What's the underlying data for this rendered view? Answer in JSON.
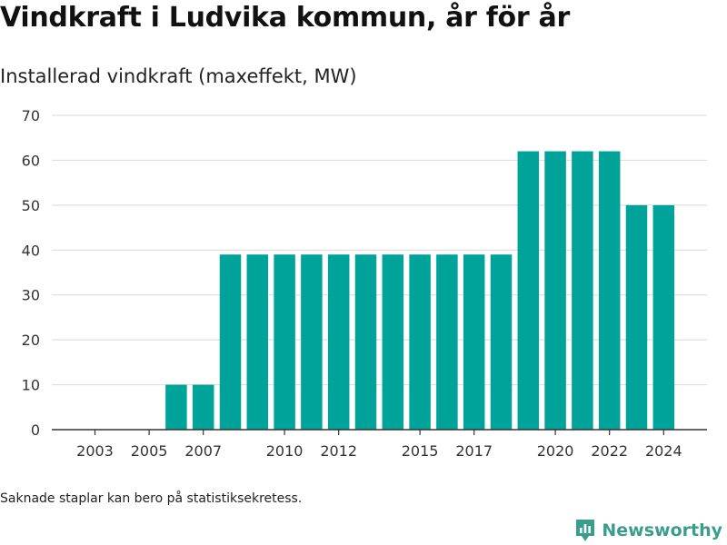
{
  "title": "Vindkraft i Ludvika kommun, år för år",
  "subtitle": "Installerad vindkraft (maxeffekt, MW)",
  "footnote": "Saknade staplar kan bero på statistiksekretess.",
  "brand": {
    "name": "Newsworthy",
    "color": "#3b9e8d",
    "icon": "newsworthy-logo-icon"
  },
  "chart_data": {
    "type": "bar",
    "title": "Vindkraft i Ludvika kommun, år för år",
    "subtitle": "Installerad vindkraft (maxeffekt, MW)",
    "xlabel": "",
    "ylabel": "",
    "ylim": [
      0,
      70
    ],
    "yticks": [
      0,
      10,
      20,
      30,
      40,
      50,
      60,
      70
    ],
    "xticks": [
      2003,
      2005,
      2007,
      2010,
      2012,
      2015,
      2017,
      2020,
      2022,
      2024
    ],
    "categories": [
      2006,
      2007,
      2008,
      2009,
      2010,
      2011,
      2012,
      2013,
      2014,
      2015,
      2016,
      2017,
      2018,
      2019,
      2020,
      2021,
      2022,
      2023,
      2024
    ],
    "values": [
      10,
      10,
      39,
      39,
      39,
      39,
      39,
      39,
      39,
      39,
      39,
      39,
      39,
      62,
      62,
      62,
      62,
      50,
      50
    ],
    "bar_color": "#00a39a",
    "grid": true,
    "legend": "none"
  }
}
